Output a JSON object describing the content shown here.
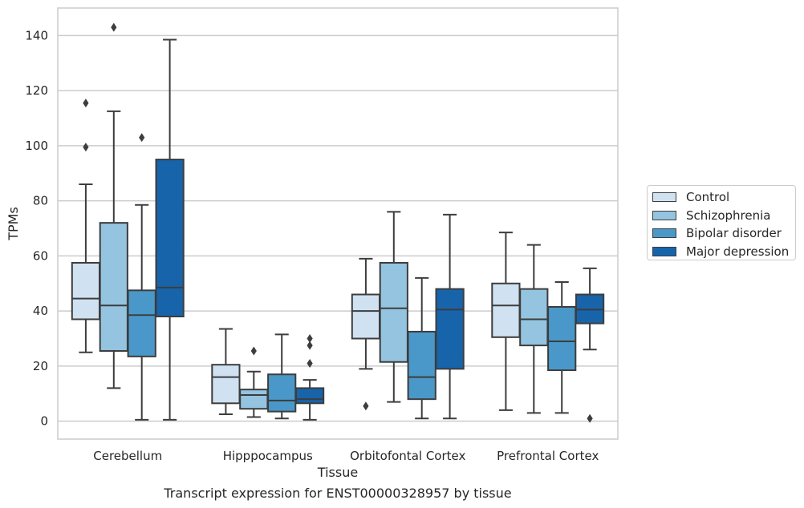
{
  "chart_data": {
    "type": "box",
    "xlabel": "Tissue",
    "ylabel": "TPMs",
    "caption": "Transcript expression for ENST00000328957 by tissue",
    "ylim": [
      -6.5,
      150
    ],
    "yticks": [
      0,
      20,
      40,
      60,
      80,
      100,
      120,
      140
    ],
    "grid": "horizontal",
    "legend_position": "right",
    "categories": [
      "Cerebellum",
      "Hipppocampus",
      "Orbitofontal Cortex",
      "Prefrontal Cortex"
    ],
    "series": [
      {
        "name": "Control",
        "color": "#d0e1f2",
        "boxes": [
          {
            "whislo": 25,
            "q1": 37,
            "med": 44.5,
            "q3": 57.5,
            "whishi": 86,
            "fliers": [
              99.5,
              115.5
            ]
          },
          {
            "whislo": 2.5,
            "q1": 6.5,
            "med": 16,
            "q3": 20.5,
            "whishi": 33.5,
            "fliers": []
          },
          {
            "whislo": 19,
            "q1": 30,
            "med": 40,
            "q3": 46,
            "whishi": 59,
            "fliers": [
              5.5
            ]
          },
          {
            "whislo": 4,
            "q1": 30.5,
            "med": 42,
            "q3": 50,
            "whishi": 68.5,
            "fliers": []
          }
        ]
      },
      {
        "name": "Schizophrenia",
        "color": "#94c4df",
        "boxes": [
          {
            "whislo": 12,
            "q1": 25.5,
            "med": 42,
            "q3": 72,
            "whishi": 112.5,
            "fliers": [
              143
            ]
          },
          {
            "whislo": 1.5,
            "q1": 4.5,
            "med": 9.5,
            "q3": 11.5,
            "whishi": 18,
            "fliers": [
              25.5
            ]
          },
          {
            "whislo": 7,
            "q1": 21.5,
            "med": 41,
            "q3": 57.5,
            "whishi": 76,
            "fliers": []
          },
          {
            "whislo": 3,
            "q1": 27.5,
            "med": 37,
            "q3": 48,
            "whishi": 64,
            "fliers": []
          }
        ]
      },
      {
        "name": "Bipolar disorder",
        "color": "#4a98c9",
        "boxes": [
          {
            "whislo": 0.5,
            "q1": 23.5,
            "med": 38.5,
            "q3": 47.5,
            "whishi": 78.5,
            "fliers": [
              103
            ]
          },
          {
            "whislo": 1,
            "q1": 3.5,
            "med": 7.5,
            "q3": 17,
            "whishi": 31.5,
            "fliers": []
          },
          {
            "whislo": 1,
            "q1": 8,
            "med": 16,
            "q3": 32.5,
            "whishi": 52,
            "fliers": []
          },
          {
            "whislo": 3,
            "q1": 18.5,
            "med": 29,
            "q3": 41.5,
            "whishi": 50.5,
            "fliers": []
          }
        ]
      },
      {
        "name": "Major depression",
        "color": "#1764ab",
        "boxes": [
          {
            "whislo": 0.5,
            "q1": 38,
            "med": 48.5,
            "q3": 95,
            "whishi": 138.5,
            "fliers": []
          },
          {
            "whislo": 0.5,
            "q1": 6.5,
            "med": 8,
            "q3": 12,
            "whishi": 15,
            "fliers": [
              21,
              27.5,
              30
            ]
          },
          {
            "whislo": 1,
            "q1": 19,
            "med": 40.5,
            "q3": 48,
            "whishi": 75,
            "fliers": []
          },
          {
            "whislo": 26,
            "q1": 35.5,
            "med": 40.5,
            "q3": 46,
            "whishi": 55.5,
            "fliers": [
              1
            ]
          }
        ]
      }
    ]
  }
}
